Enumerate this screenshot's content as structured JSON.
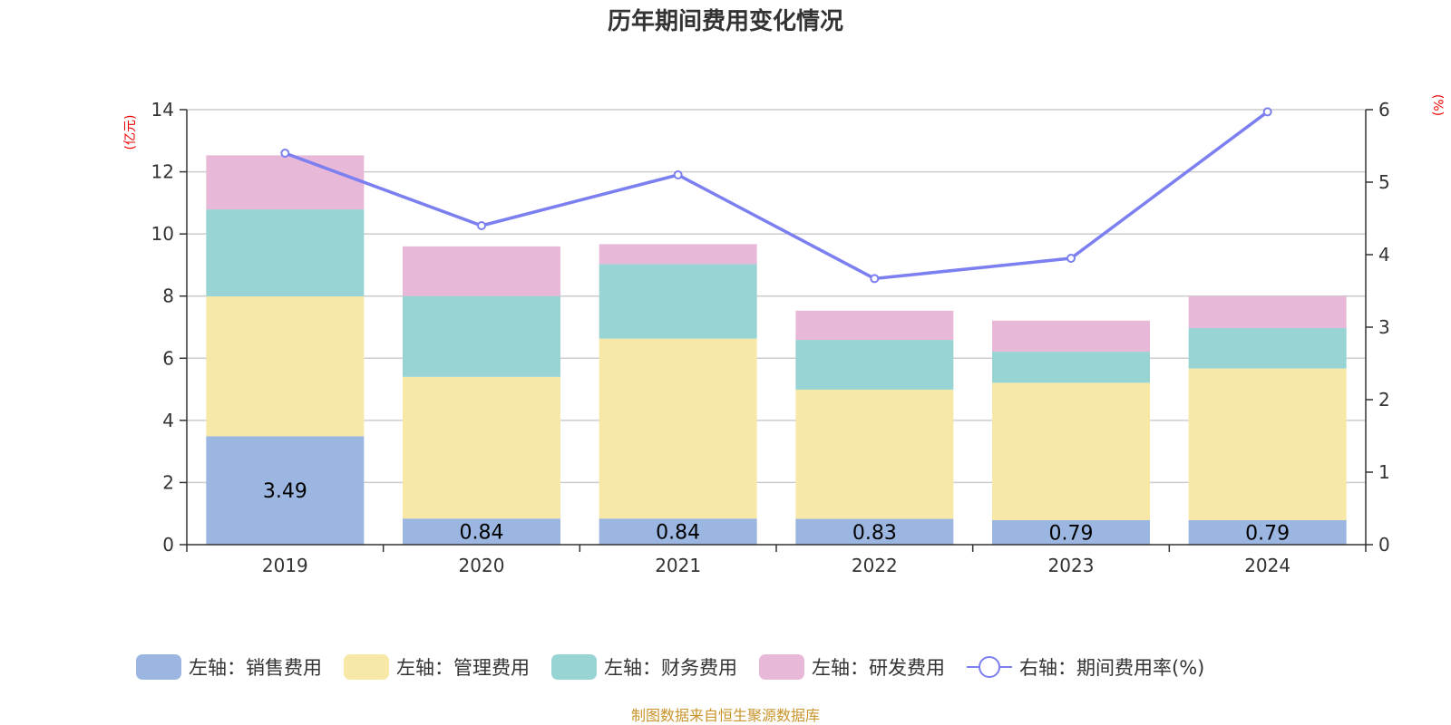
{
  "chart_data": {
    "type": "bar",
    "stacked": true,
    "title": "历年期间费用变化情况",
    "categories": [
      "2019",
      "2020",
      "2021",
      "2022",
      "2023",
      "2024"
    ],
    "left_axis": {
      "unit_label": "(亿元)",
      "ylim": [
        0,
        14
      ],
      "ticks": [
        0,
        2,
        4,
        6,
        8,
        10,
        12,
        14
      ]
    },
    "right_axis": {
      "unit_label": "(%)",
      "ylim": [
        0,
        6
      ],
      "ticks": [
        0,
        1,
        2,
        3,
        4,
        5,
        6
      ]
    },
    "series": [
      {
        "name": "左轴：销售费用",
        "axis": "left",
        "color": "#9bb6e1",
        "values": [
          3.49,
          0.84,
          0.84,
          0.83,
          0.79,
          0.79
        ],
        "labels": [
          "3.49",
          "0.84",
          "0.84",
          "0.83",
          "0.79",
          "0.79"
        ]
      },
      {
        "name": "左轴：管理费用",
        "axis": "left",
        "color": "#f7e8a8",
        "values": [
          4.5,
          4.56,
          5.79,
          4.16,
          4.42,
          4.88
        ]
      },
      {
        "name": "左轴：财务费用",
        "axis": "left",
        "color": "#98d4d4",
        "values": [
          2.8,
          2.6,
          2.4,
          1.6,
          1.0,
          1.3
        ]
      },
      {
        "name": "左轴：研发费用",
        "axis": "left",
        "color": "#e8b8d8",
        "values": [
          1.74,
          1.6,
          0.64,
          0.94,
          1.0,
          1.03
        ]
      }
    ],
    "line_series": {
      "name": "右轴：期间费用率(%)",
      "axis": "right",
      "color": "#7b7ff0",
      "values": [
        5.4,
        4.4,
        5.1,
        3.67,
        3.95,
        5.97
      ]
    },
    "legend_position": "bottom",
    "grid": true
  },
  "source_note": "制图数据来自恒生聚源数据库",
  "colors": {
    "unit_label": "#ee0000",
    "source_note": "#c8942c",
    "axis": "#333333",
    "grid": "#cccccc"
  }
}
